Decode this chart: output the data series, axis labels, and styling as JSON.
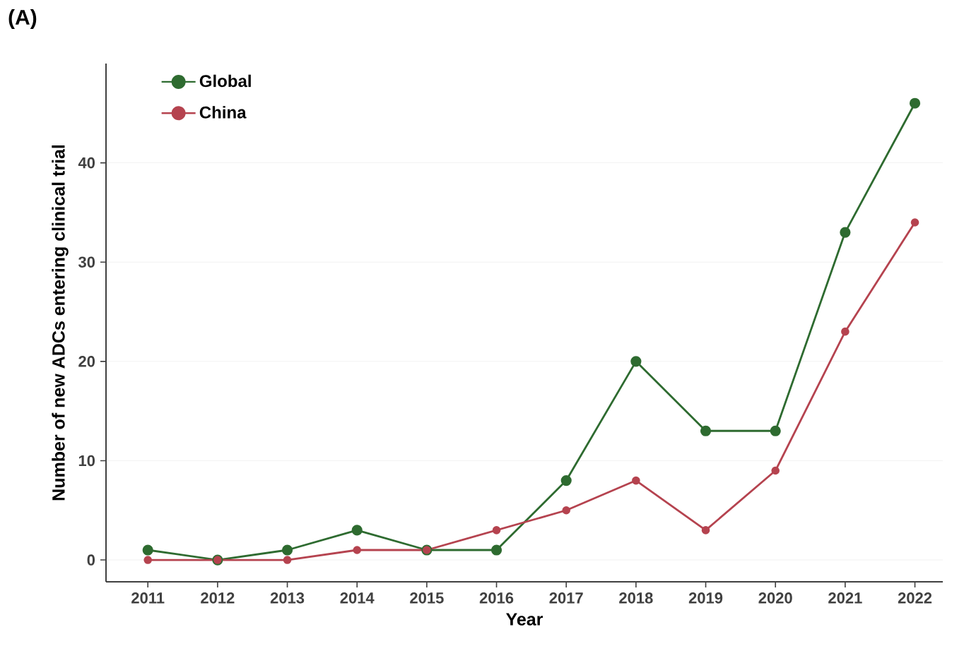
{
  "chart_data": {
    "type": "line",
    "title": "(A)",
    "xlabel": "Year",
    "ylabel": "Number of new ADCs entering clinical trial",
    "categories": [
      "2011",
      "2012",
      "2013",
      "2014",
      "2015",
      "2016",
      "2017",
      "2018",
      "2019",
      "2020",
      "2021",
      "2022"
    ],
    "series": [
      {
        "name": "Global",
        "color": "#2e6b30",
        "values": [
          1,
          0,
          1,
          3,
          1,
          1,
          8,
          20,
          13,
          13,
          33,
          46
        ]
      },
      {
        "name": "China",
        "color": "#b5434f",
        "values": [
          0,
          0,
          0,
          1,
          1,
          3,
          5,
          8,
          3,
          9,
          23,
          34
        ]
      }
    ],
    "ylim": [
      -2.2,
      50
    ],
    "yticks": [
      0,
      10,
      20,
      30,
      40
    ],
    "grid": "y",
    "legend": "top left",
    "marker": "circle",
    "line_style": "solid"
  }
}
